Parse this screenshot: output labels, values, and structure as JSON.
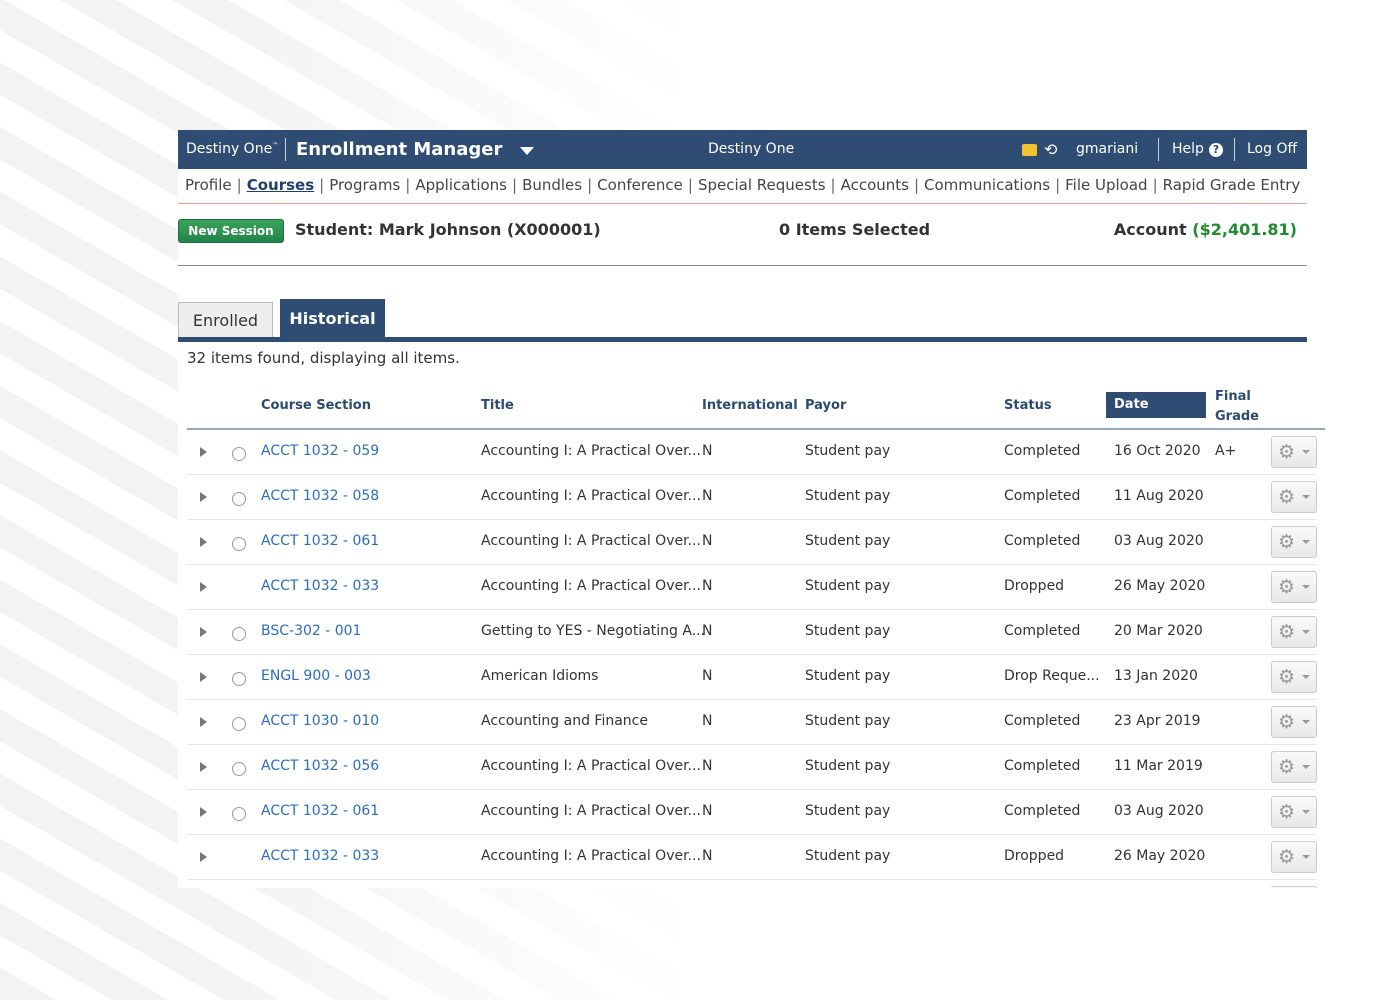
{
  "header": {
    "brand": "Destiny One",
    "trademark": "™",
    "app_name": "Enrollment Manager",
    "center_title": "Destiny One",
    "username": "gmariani",
    "help": "Help",
    "help_icon": "?",
    "log_off": "Log Off",
    "icons": [
      "mail-icon",
      "history-icon",
      "chevron-down-icon",
      "question-circle-icon"
    ]
  },
  "nav": {
    "items": [
      {
        "label": "Profile"
      },
      {
        "label": "Courses",
        "active": true
      },
      {
        "label": "Programs"
      },
      {
        "label": "Applications"
      },
      {
        "label": "Bundles"
      },
      {
        "label": "Conference"
      },
      {
        "label": "Special Requests"
      },
      {
        "label": "Accounts"
      },
      {
        "label": "Communications"
      },
      {
        "label": "File Upload"
      },
      {
        "label": "Rapid Grade Entry"
      }
    ]
  },
  "session": {
    "new_session": "New Session",
    "student": "Student: Mark Johnson (X000001)",
    "items_selected": "0 Items Selected",
    "account_label": "Account",
    "account_amount": "($2,401.81)"
  },
  "colors": {
    "header": "#2f4d73",
    "link": "#2a6ebd",
    "button": "#21844a",
    "amount": "#1f8a2e"
  },
  "tabs": [
    {
      "label": "Enrolled",
      "active": false
    },
    {
      "label": "Historical",
      "active": true
    }
  ],
  "results_text": "32 items found, displaying all items.",
  "table": {
    "columns": [
      "Course Section",
      "Title",
      "International",
      "Payor",
      "Status",
      "Date",
      "Final Grade"
    ],
    "sorted_column": "Date",
    "rows": [
      {
        "course": "ACCT 1032 - 059",
        "title": "Accounting I: A Practical Over...",
        "intl": "N",
        "payor": "Student pay",
        "status": "Completed",
        "date": "16 Oct 2020",
        "grade": "A+",
        "radio": true
      },
      {
        "course": "ACCT 1032 - 058",
        "title": "Accounting I: A Practical Over...",
        "intl": "N",
        "payor": "Student pay",
        "status": "Completed",
        "date": "11 Aug 2020",
        "grade": "",
        "radio": true
      },
      {
        "course": "ACCT 1032 - 061",
        "title": "Accounting I: A Practical Over...",
        "intl": "N",
        "payor": "Student pay",
        "status": "Completed",
        "date": "03 Aug 2020",
        "grade": "",
        "radio": true
      },
      {
        "course": "ACCT 1032 - 033",
        "title": "Accounting I: A Practical Over...",
        "intl": "N",
        "payor": "Student pay",
        "status": "Dropped",
        "date": "26 May 2020",
        "grade": "",
        "radio": false
      },
      {
        "course": "BSC-302 - 001",
        "title": "Getting to YES - Negotiating A...",
        "intl": "N",
        "payor": "Student pay",
        "status": "Completed",
        "date": "20 Mar 2020",
        "grade": "",
        "radio": true
      },
      {
        "course": "ENGL 900 - 003",
        "title": "American Idioms",
        "intl": "N",
        "payor": "Student pay",
        "status": "Drop Reque...",
        "date": "13 Jan 2020",
        "grade": "",
        "radio": true
      },
      {
        "course": "ACCT 1030 - 010",
        "title": "Accounting and Finance",
        "intl": "N",
        "payor": "Student pay",
        "status": "Completed",
        "date": "23 Apr 2019",
        "grade": "",
        "radio": true
      },
      {
        "course": "ACCT 1032 - 056",
        "title": "Accounting I: A Practical Over...",
        "intl": "N",
        "payor": "Student pay",
        "status": "Completed",
        "date": "11 Mar 2019",
        "grade": "",
        "radio": true
      },
      {
        "course": "ACCT 1032 - 061",
        "title": "Accounting I: A Practical Over...",
        "intl": "N",
        "payor": "Student pay",
        "status": "Completed",
        "date": "03 Aug 2020",
        "grade": "",
        "radio": true
      },
      {
        "course": "ACCT 1032 - 033",
        "title": "Accounting I: A Practical Over...",
        "intl": "N",
        "payor": "Student pay",
        "status": "Dropped",
        "date": "26 May 2020",
        "grade": "",
        "radio": false
      }
    ]
  }
}
